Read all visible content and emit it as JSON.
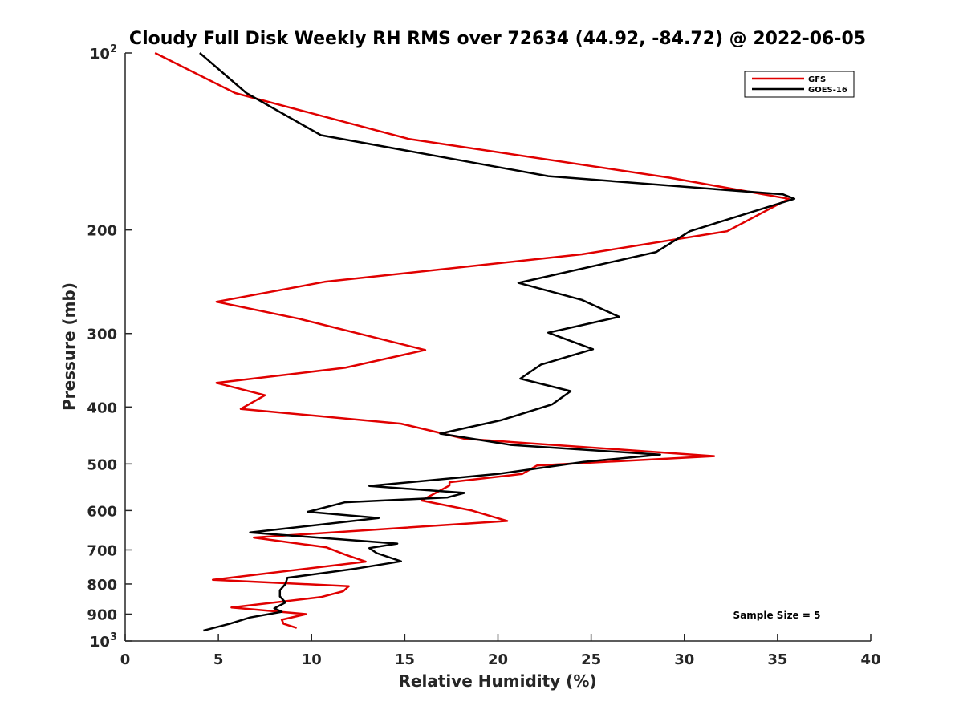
{
  "chart_data": {
    "type": "line",
    "title": "Cloudy Full Disk Weekly RH RMS over 72634 (44.92, -84.72) @ 2022-06-05",
    "xlabel": "Relative Humidity (%)",
    "ylabel": "Pressure (mb)",
    "xlim": [
      0,
      40
    ],
    "ylim": [
      100,
      1000
    ],
    "yscale": "log",
    "y_reversed": true,
    "grid": false,
    "legend_position": "top-right",
    "xticks": [
      0,
      5,
      10,
      15,
      20,
      25,
      30,
      35,
      40
    ],
    "yticks": [
      {
        "value": 100,
        "base": "10",
        "exp": "2"
      },
      {
        "value": 200,
        "label": "200"
      },
      {
        "value": 300,
        "label": "300"
      },
      {
        "value": 400,
        "label": "400"
      },
      {
        "value": 500,
        "label": "500"
      },
      {
        "value": 600,
        "label": "600"
      },
      {
        "value": 700,
        "label": "700"
      },
      {
        "value": 800,
        "label": "800"
      },
      {
        "value": 900,
        "label": "900"
      },
      {
        "value": 1000,
        "base": "10",
        "exp": "3"
      }
    ],
    "annotation": "Sample Size = 5",
    "series": [
      {
        "name": "GFS",
        "color": "#e00000",
        "x": [
          1.6,
          5.9,
          15.2,
          29.2,
          35.6,
          32.3,
          24.5,
          10.7,
          4.9,
          9.3,
          16.1,
          11.8,
          4.9,
          7.5,
          6.2,
          14.8,
          18.2,
          31.6,
          22.1,
          21.3,
          17.4,
          17.4,
          15.9,
          18.6,
          20.5,
          6.9,
          10.8,
          11.8,
          12.9,
          4.7,
          12.0,
          11.7,
          10.5,
          5.7,
          9.7,
          8.4,
          8.5,
          9.2
        ],
        "y": [
          100,
          117,
          140,
          163,
          177,
          201,
          220,
          245,
          265,
          283,
          320,
          343,
          364,
          382,
          403,
          427,
          453,
          485,
          503,
          520,
          537,
          544,
          577,
          600,
          625,
          667,
          693,
          713,
          733,
          787,
          807,
          823,
          842,
          877,
          900,
          920,
          935,
          950
        ]
      },
      {
        "name": "GOES-16",
        "color": "#000000",
        "x": [
          4.0,
          6.5,
          10.5,
          22.7,
          35.3,
          35.9,
          30.3,
          28.5,
          21.1,
          24.5,
          26.5,
          22.7,
          25.1,
          22.3,
          21.2,
          23.9,
          22.9,
          20.2,
          16.9,
          20.7,
          28.7,
          24.6,
          20.0,
          13.1,
          18.2,
          17.3,
          11.8,
          9.8,
          13.6,
          6.7,
          14.6,
          13.1,
          13.5,
          14.8,
          12.4,
          8.7,
          8.6,
          8.3,
          8.3,
          8.6,
          8.0,
          8.4,
          6.7,
          5.6,
          4.2
        ],
        "y": [
          100,
          117,
          138,
          162,
          174,
          177,
          201,
          218,
          246,
          263,
          281,
          299,
          319,
          339,
          358,
          376,
          396,
          421,
          444,
          464,
          482,
          496,
          520,
          545,
          560,
          570,
          581,
          603,
          618,
          654,
          683,
          695,
          709,
          732,
          753,
          781,
          800,
          820,
          840,
          860,
          880,
          892,
          912,
          935,
          960
        ]
      }
    ]
  }
}
